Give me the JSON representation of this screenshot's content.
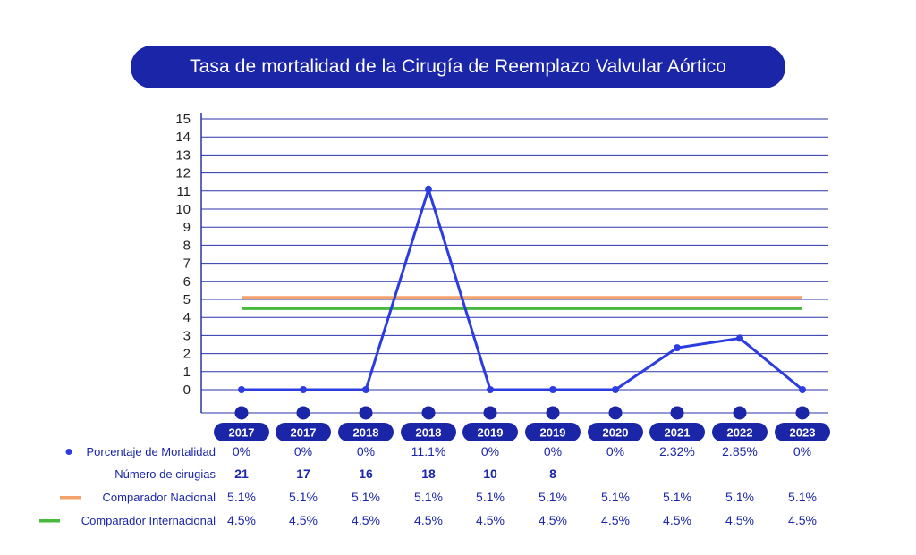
{
  "title": "Tasa de mortalidad de la Cirugía de Reemplazo Valvular Aórtico",
  "colors": {
    "navy": "#1b25a8",
    "line": "#2c3ce0",
    "grid": "#2a33a8",
    "nacional": "#f4a26b",
    "internacional": "#47b93c"
  },
  "chart_data": {
    "type": "line",
    "title": "Tasa de mortalidad de la Cirugía de Reemplazo Valvular Aórtico",
    "categories": [
      "2017",
      "2017",
      "2018",
      "2018",
      "2019",
      "2019",
      "2020",
      "2021",
      "2022",
      "2023"
    ],
    "y_ticks": [
      "0",
      "1",
      "2",
      "3",
      "4",
      "5",
      "6",
      "7",
      "8",
      "9",
      "10",
      "11",
      "12",
      "13",
      "14",
      "15"
    ],
    "ylim": [
      0,
      15
    ],
    "grid": true,
    "series": [
      {
        "name": "Porcentaje de Mortalidad",
        "values": [
          0,
          0,
          0,
          11.1,
          0,
          0,
          0,
          2.32,
          2.85,
          0
        ]
      },
      {
        "name": "Comparador Nacional",
        "values": [
          5.1,
          5.1,
          5.1,
          5.1,
          5.1,
          5.1,
          5.1,
          5.1,
          5.1,
          5.1
        ]
      },
      {
        "name": "Comparador Internacional",
        "values": [
          4.5,
          4.5,
          4.5,
          4.5,
          4.5,
          4.5,
          4.5,
          4.5,
          4.5,
          4.5
        ]
      }
    ]
  },
  "table": {
    "rows": [
      {
        "label": "Porcentaje de Mortalidad",
        "marker": "dot",
        "cells": [
          "0%",
          "0%",
          "0%",
          "11.1%",
          "0%",
          "0%",
          "0%",
          "2.32%",
          "2.85%",
          "0%"
        ]
      },
      {
        "label": "Número de cirugias",
        "marker": "none",
        "cells": [
          "21",
          "17",
          "16",
          "18",
          "10",
          "8",
          "",
          "",
          "",
          ""
        ]
      },
      {
        "label": "Comparador Nacional",
        "marker": "nacional-line",
        "cells": [
          "5.1%",
          "5.1%",
          "5.1%",
          "5.1%",
          "5.1%",
          "5.1%",
          "5.1%",
          "5.1%",
          "5.1%",
          "5.1%"
        ]
      },
      {
        "label": "Comparador Internacional",
        "marker": "internacional-line",
        "cells": [
          "4.5%",
          "4.5%",
          "4.5%",
          "4.5%",
          "4.5%",
          "4.5%",
          "4.5%",
          "4.5%",
          "4.5%",
          "4.5%"
        ]
      }
    ]
  }
}
